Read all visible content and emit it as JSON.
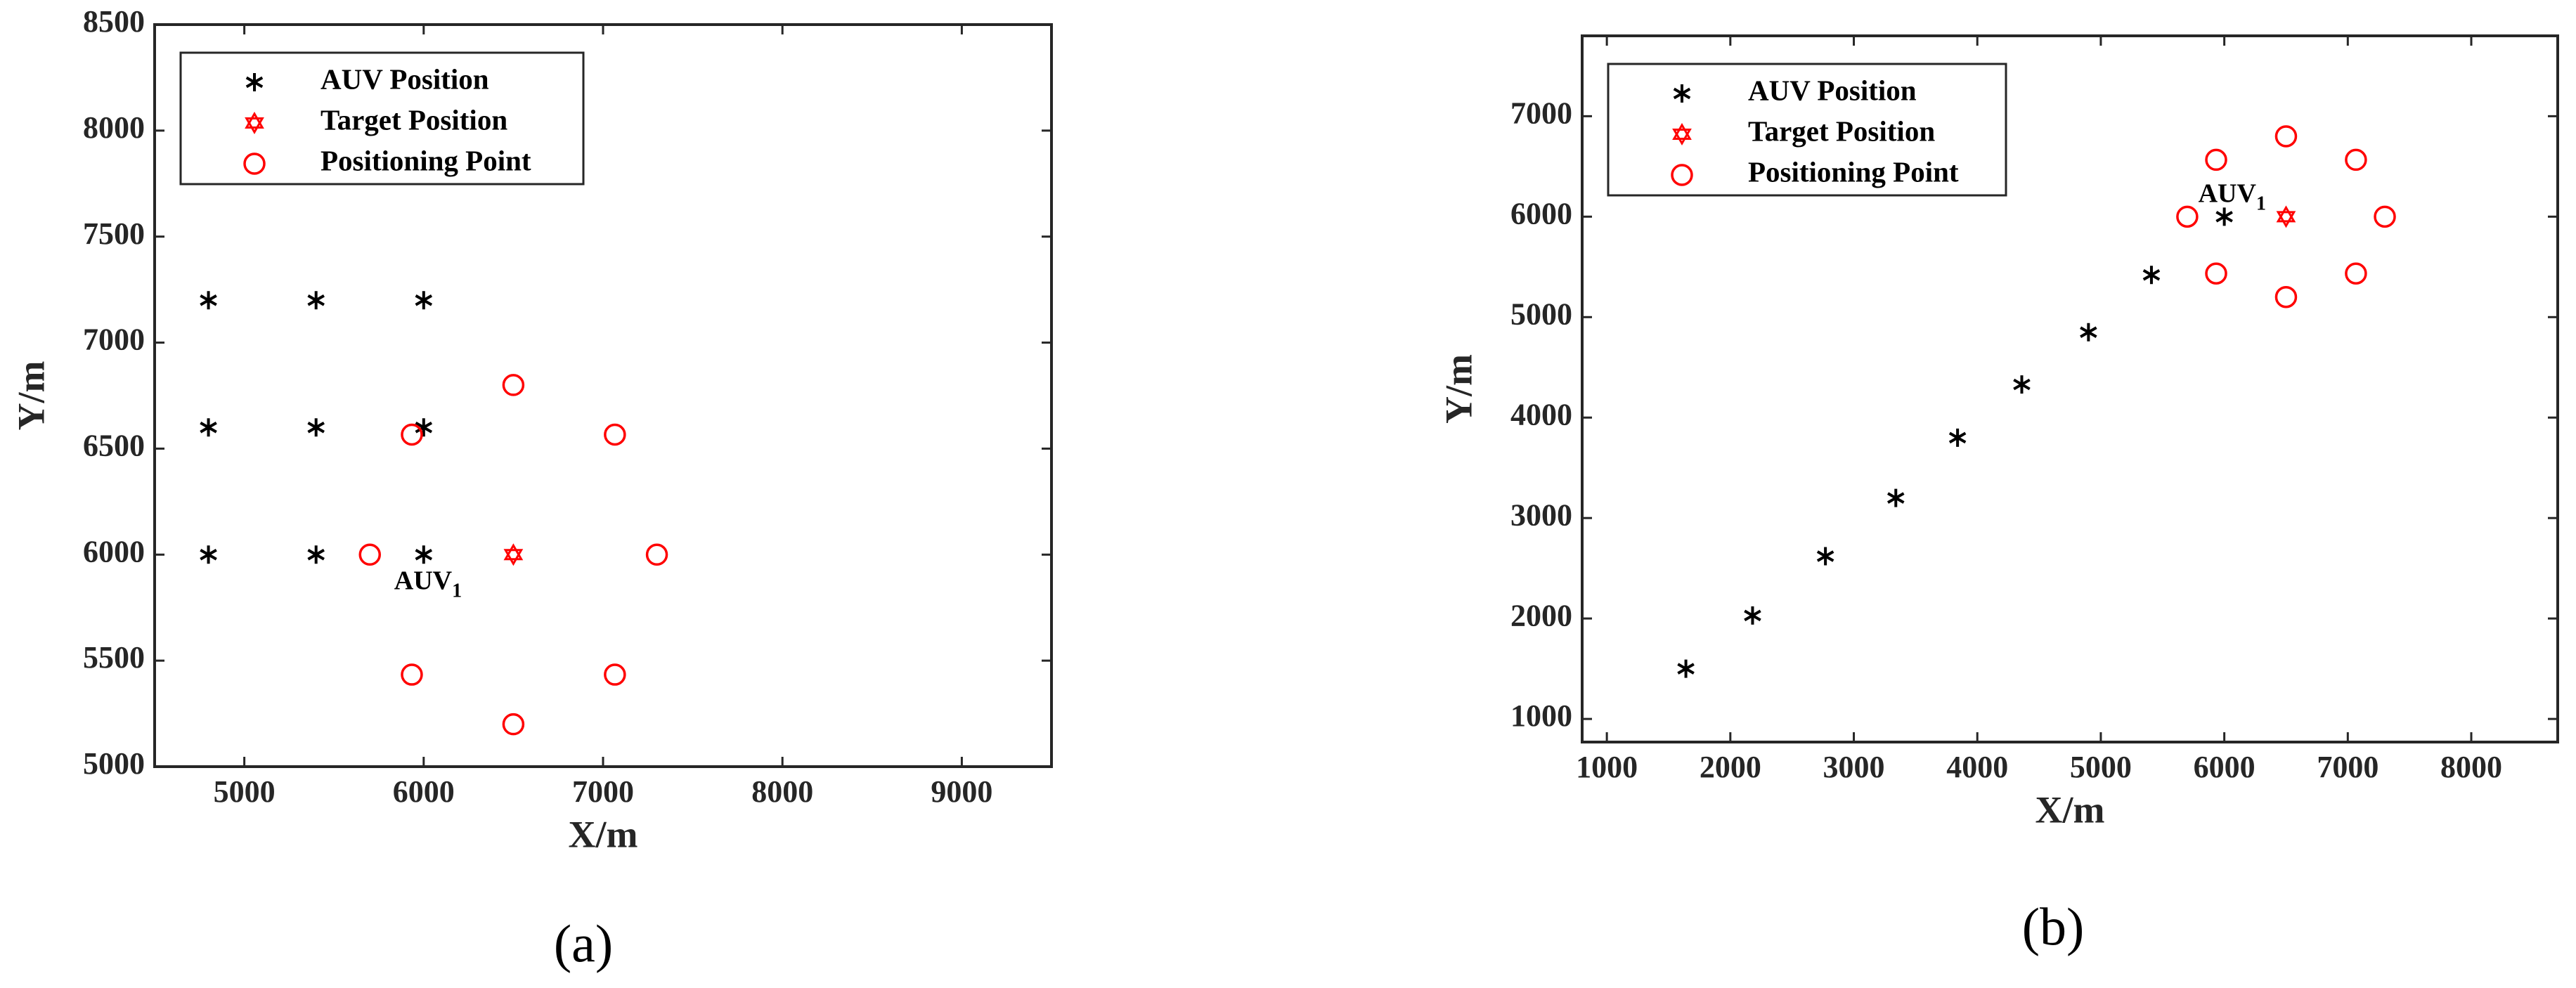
{
  "chart_data": [
    {
      "type": "scatter",
      "xlabel": "X/m",
      "ylabel": "Y/m",
      "caption": "(a)",
      "xlim": [
        4500,
        9500
      ],
      "ylim": [
        5000,
        8500
      ],
      "xticks": [
        5000,
        6000,
        7000,
        8000,
        9000
      ],
      "yticks": [
        5000,
        5500,
        6000,
        6500,
        7000,
        7500,
        8000,
        8500
      ],
      "legend": "upper left",
      "series": [
        {
          "name": "AUV Position",
          "color": "#000000",
          "marker": "asterisk",
          "x": [
            4800,
            5400,
            6000,
            4800,
            5400,
            6000,
            4800,
            5400,
            6000
          ],
          "values": [
            6000,
            6000,
            6000,
            6600,
            6600,
            6600,
            7200,
            7200,
            7200
          ]
        },
        {
          "name": "Target Position",
          "color": "#ff0000",
          "marker": "hexagram",
          "x": [
            6500
          ],
          "values": [
            6000
          ]
        },
        {
          "name": "Positioning Point",
          "color": "#ff0000",
          "marker": "circle",
          "x": [
            7300,
            7066,
            6500,
            5934,
            5700,
            5934,
            6500,
            7066
          ],
          "values": [
            6000,
            6566,
            6800,
            6566,
            6000,
            5434,
            5200,
            5434
          ]
        }
      ],
      "annotation": {
        "text": "AUV",
        "subscript": "1"
      }
    },
    {
      "type": "scatter",
      "xlabel": "X/m",
      "ylabel": "Y/m",
      "caption": "(b)",
      "xlim": [
        800,
        8700
      ],
      "ylim": [
        770,
        7800
      ],
      "xticks": [
        1000,
        2000,
        3000,
        4000,
        5000,
        6000,
        7000,
        8000
      ],
      "yticks": [
        1000,
        2000,
        3000,
        4000,
        5000,
        6000,
        7000
      ],
      "legend": "upper left",
      "series": [
        {
          "name": "AUV Position",
          "color": "#000000",
          "marker": "asterisk",
          "x": [
            1640,
            2180,
            2770,
            3340,
            3840,
            4360,
            4900,
            5410,
            6000
          ],
          "values": [
            1500,
            2030,
            2620,
            3200,
            3800,
            4330,
            4850,
            5420,
            6000
          ]
        },
        {
          "name": "Target Position",
          "color": "#ff0000",
          "marker": "hexagram",
          "x": [
            6500
          ],
          "values": [
            6000
          ]
        },
        {
          "name": "Positioning Point",
          "color": "#ff0000",
          "marker": "circle",
          "x": [
            7300,
            7066,
            6500,
            5934,
            5700,
            5934,
            6500,
            7066
          ],
          "values": [
            6000,
            6566,
            6800,
            6566,
            6000,
            5434,
            5200,
            5434
          ]
        }
      ],
      "annotation": {
        "text": "AUV",
        "subscript": "1"
      }
    }
  ]
}
